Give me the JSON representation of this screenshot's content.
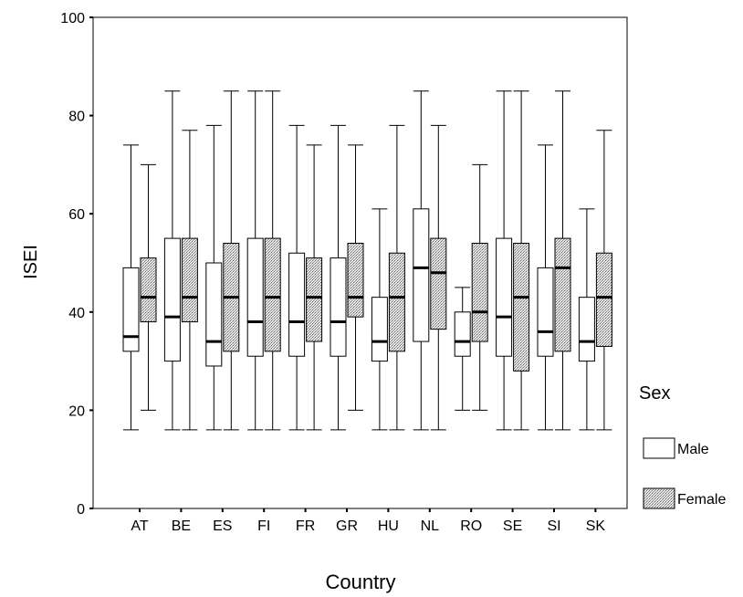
{
  "chart_data": {
    "type": "boxplot",
    "title": "",
    "xlabel": "Country",
    "ylabel": "ISEI",
    "ylim": [
      0,
      100
    ],
    "yticks": [
      0,
      20,
      40,
      60,
      80,
      100
    ],
    "categories": [
      "AT",
      "BE",
      "ES",
      "FI",
      "FR",
      "GR",
      "HU",
      "NL",
      "RO",
      "SE",
      "SI",
      "SK"
    ],
    "legend": {
      "title": "Sex",
      "position": "right"
    },
    "series": [
      {
        "name": "Male",
        "fill": "#ffffff",
        "boxes": [
          {
            "min": 16,
            "q1": 32,
            "median": 35,
            "q3": 49,
            "max": 74
          },
          {
            "min": 16,
            "q1": 30,
            "median": 39,
            "q3": 55,
            "max": 85
          },
          {
            "min": 16,
            "q1": 29,
            "median": 34,
            "q3": 50,
            "max": 78
          },
          {
            "min": 16,
            "q1": 31,
            "median": 38,
            "q3": 55,
            "max": 85
          },
          {
            "min": 16,
            "q1": 31,
            "median": 38,
            "q3": 52,
            "max": 78
          },
          {
            "min": 16,
            "q1": 31,
            "median": 38,
            "q3": 51,
            "max": 78
          },
          {
            "min": 16,
            "q1": 30,
            "median": 34,
            "q3": 43,
            "max": 61
          },
          {
            "min": 16,
            "q1": 34,
            "median": 49,
            "q3": 61,
            "max": 85
          },
          {
            "min": 20,
            "q1": 31,
            "median": 34,
            "q3": 40,
            "max": 45
          },
          {
            "min": 16,
            "q1": 31,
            "median": 39,
            "q3": 55,
            "max": 85
          },
          {
            "min": 16,
            "q1": 31,
            "median": 36,
            "q3": 49,
            "max": 74
          },
          {
            "min": 16,
            "q1": 30,
            "median": 34,
            "q3": 43,
            "max": 61
          }
        ]
      },
      {
        "name": "Female",
        "fill": "#c8c8c8",
        "boxes": [
          {
            "min": 20,
            "q1": 38,
            "median": 43,
            "q3": 51,
            "max": 70
          },
          {
            "min": 16,
            "q1": 38,
            "median": 43,
            "q3": 55,
            "max": 77
          },
          {
            "min": 16,
            "q1": 32,
            "median": 43,
            "q3": 54,
            "max": 85
          },
          {
            "min": 16,
            "q1": 32,
            "median": 43,
            "q3": 55,
            "max": 85
          },
          {
            "min": 16,
            "q1": 34,
            "median": 43,
            "q3": 51,
            "max": 74
          },
          {
            "min": 20,
            "q1": 39,
            "median": 43,
            "q3": 54,
            "max": 74
          },
          {
            "min": 16,
            "q1": 32,
            "median": 43,
            "q3": 52,
            "max": 78
          },
          {
            "min": 16,
            "q1": 36.5,
            "median": 48,
            "q3": 55,
            "max": 78
          },
          {
            "min": 20,
            "q1": 34,
            "median": 40,
            "q3": 54,
            "max": 70
          },
          {
            "min": 16,
            "q1": 28,
            "median": 43,
            "q3": 54,
            "max": 85
          },
          {
            "min": 16,
            "q1": 32,
            "median": 49,
            "q3": 55,
            "max": 85
          },
          {
            "min": 16,
            "q1": 33,
            "median": 43,
            "q3": 52,
            "max": 77
          }
        ]
      }
    ]
  }
}
